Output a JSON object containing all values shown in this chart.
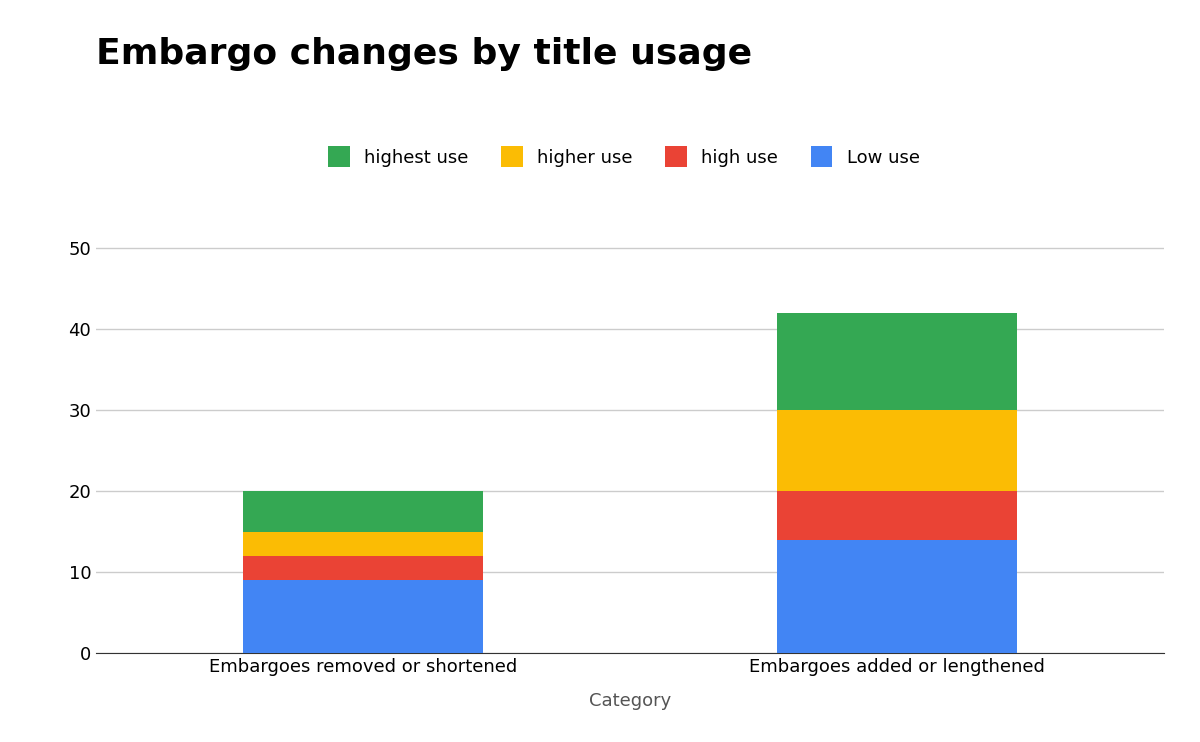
{
  "title": "Embargo changes by title usage",
  "title_fontsize": 26,
  "title_fontweight": "bold",
  "xlabel": "Category",
  "xlabel_fontsize": 13,
  "categories": [
    "Embargoes removed or shortened",
    "Embargoes added or lengthened"
  ],
  "series": [
    {
      "label": "Low use",
      "color": "#4285F4",
      "values": [
        9,
        14
      ]
    },
    {
      "label": "high use",
      "color": "#EA4335",
      "values": [
        3,
        6
      ]
    },
    {
      "label": "higher use",
      "color": "#FBBC04",
      "values": [
        3,
        10
      ]
    },
    {
      "label": "highest use",
      "color": "#34A853",
      "values": [
        5,
        12
      ]
    }
  ],
  "ylim": [
    0,
    55
  ],
  "yticks": [
    0,
    10,
    20,
    30,
    40,
    50
  ],
  "legend_order": [
    3,
    2,
    1,
    0
  ],
  "bar_width": 0.45,
  "background_color": "#ffffff",
  "grid_color": "#cccccc",
  "tick_fontsize": 13,
  "legend_fontsize": 13
}
